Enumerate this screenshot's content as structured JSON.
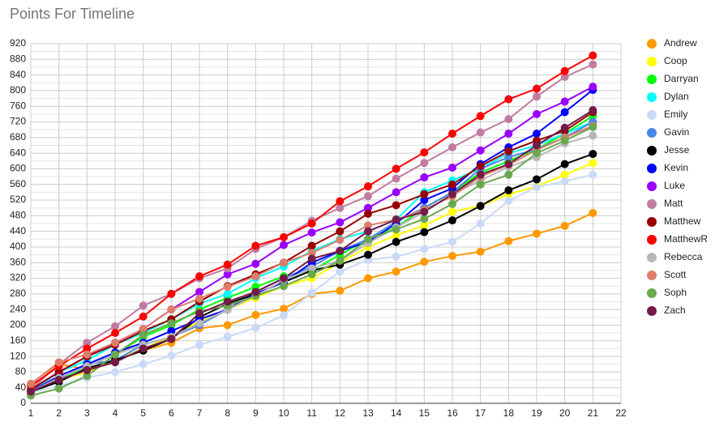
{
  "chart_data": {
    "type": "line",
    "title": "Points For Timeline",
    "x": [
      1,
      2,
      3,
      4,
      5,
      6,
      7,
      8,
      9,
      10,
      11,
      12,
      13,
      14,
      15,
      16,
      17,
      18,
      19,
      20,
      21
    ],
    "xlim": [
      1,
      22
    ],
    "xticks": [
      1,
      2,
      3,
      4,
      5,
      6,
      7,
      8,
      9,
      10,
      11,
      12,
      13,
      14,
      15,
      16,
      17,
      18,
      19,
      20,
      21,
      22
    ],
    "ylim": [
      0,
      920
    ],
    "yticks": [
      0,
      40,
      80,
      120,
      160,
      200,
      240,
      280,
      320,
      360,
      400,
      440,
      480,
      520,
      560,
      600,
      640,
      680,
      720,
      760,
      800,
      840,
      880,
      920
    ],
    "grid": true,
    "legend": "right",
    "series": [
      {
        "name": "Andrew",
        "color": "#ff9900",
        "values": [
          42,
          100,
          88,
          110,
          135,
          155,
          192,
          200,
          226,
          242,
          280,
          288,
          320,
          337,
          362,
          377,
          388,
          415,
          434,
          454,
          487
        ]
      },
      {
        "name": "Coop",
        "color": "#ffff00",
        "values": [
          30,
          60,
          80,
          110,
          140,
          170,
          210,
          240,
          270,
          300,
          320,
          360,
          400,
          430,
          455,
          490,
          505,
          535,
          555,
          585,
          615
        ]
      },
      {
        "name": "Darryan",
        "color": "#00ff00",
        "values": [
          25,
          60,
          95,
          125,
          170,
          200,
          240,
          270,
          298,
          325,
          340,
          380,
          420,
          450,
          500,
          540,
          590,
          620,
          650,
          690,
          735
        ]
      },
      {
        "name": "Dylan",
        "color": "#00ffff",
        "values": [
          30,
          80,
          110,
          150,
          180,
          215,
          255,
          280,
          320,
          350,
          390,
          420,
          440,
          470,
          540,
          570,
          600,
          640,
          660,
          690,
          720
        ]
      },
      {
        "name": "Emily",
        "color": "#c9daf8",
        "values": [
          28,
          45,
          65,
          80,
          100,
          122,
          150,
          170,
          193,
          225,
          283,
          337,
          367,
          375,
          395,
          413,
          460,
          518,
          553,
          568,
          585
        ]
      },
      {
        "name": "Gavin",
        "color": "#4a86e8",
        "values": [
          35,
          62,
          100,
          110,
          150,
          170,
          200,
          240,
          285,
          320,
          350,
          390,
          420,
          465,
          500,
          540,
          600,
          630,
          650,
          680,
          720
        ]
      },
      {
        "name": "Jesse",
        "color": "#000000",
        "values": [
          30,
          55,
          90,
          110,
          135,
          165,
          220,
          255,
          280,
          310,
          340,
          355,
          380,
          413,
          438,
          468,
          505,
          545,
          573,
          612,
          638
        ]
      },
      {
        "name": "Kevin",
        "color": "#0000ff",
        "values": [
          30,
          70,
          100,
          130,
          155,
          185,
          215,
          240,
          280,
          310,
          360,
          390,
          413,
          460,
          520,
          550,
          612,
          655,
          690,
          745,
          802
        ]
      },
      {
        "name": "Luke",
        "color": "#9900ff",
        "values": [
          35,
          80,
          120,
          155,
          190,
          240,
          285,
          330,
          357,
          405,
          437,
          463,
          500,
          540,
          578,
          603,
          647,
          690,
          740,
          772,
          810
        ]
      },
      {
        "name": "Matt",
        "color": "#c27ba0",
        "values": [
          35,
          100,
          155,
          197,
          250,
          280,
          320,
          345,
          395,
          425,
          467,
          500,
          530,
          575,
          615,
          655,
          693,
          727,
          785,
          835,
          867
        ]
      },
      {
        "name": "Matthew",
        "color": "#980000",
        "values": [
          35,
          80,
          120,
          150,
          185,
          215,
          260,
          300,
          330,
          360,
          403,
          440,
          485,
          507,
          535,
          560,
          607,
          645,
          672,
          697,
          745
        ]
      },
      {
        "name": "MatthewR",
        "color": "#ff0000",
        "values": [
          45,
          95,
          140,
          180,
          222,
          280,
          325,
          355,
          403,
          425,
          460,
          517,
          555,
          600,
          642,
          690,
          735,
          778,
          805,
          850,
          890
        ]
      },
      {
        "name": "Rebecca",
        "color": "#b7b7b7",
        "values": [
          30,
          65,
          95,
          125,
          150,
          170,
          205,
          240,
          275,
          315,
          345,
          365,
          410,
          450,
          490,
          535,
          570,
          605,
          630,
          665,
          685
        ]
      },
      {
        "name": "Scott",
        "color": "#dd7e6b",
        "values": [
          50,
          105,
          125,
          155,
          190,
          240,
          268,
          298,
          325,
          360,
          385,
          418,
          455,
          470,
          495,
          530,
          580,
          610,
          648,
          680,
          710
        ]
      },
      {
        "name": "Soph",
        "color": "#6aa84f",
        "values": [
          20,
          38,
          70,
          125,
          175,
          205,
          235,
          250,
          275,
          300,
          330,
          365,
          420,
          445,
          472,
          510,
          560,
          585,
          640,
          672,
          707
        ]
      },
      {
        "name": "Zach",
        "color": "#741b47",
        "values": [
          30,
          60,
          85,
          105,
          140,
          165,
          230,
          260,
          285,
          320,
          370,
          390,
          440,
          470,
          490,
          535,
          585,
          612,
          660,
          705,
          750
        ]
      }
    ]
  }
}
